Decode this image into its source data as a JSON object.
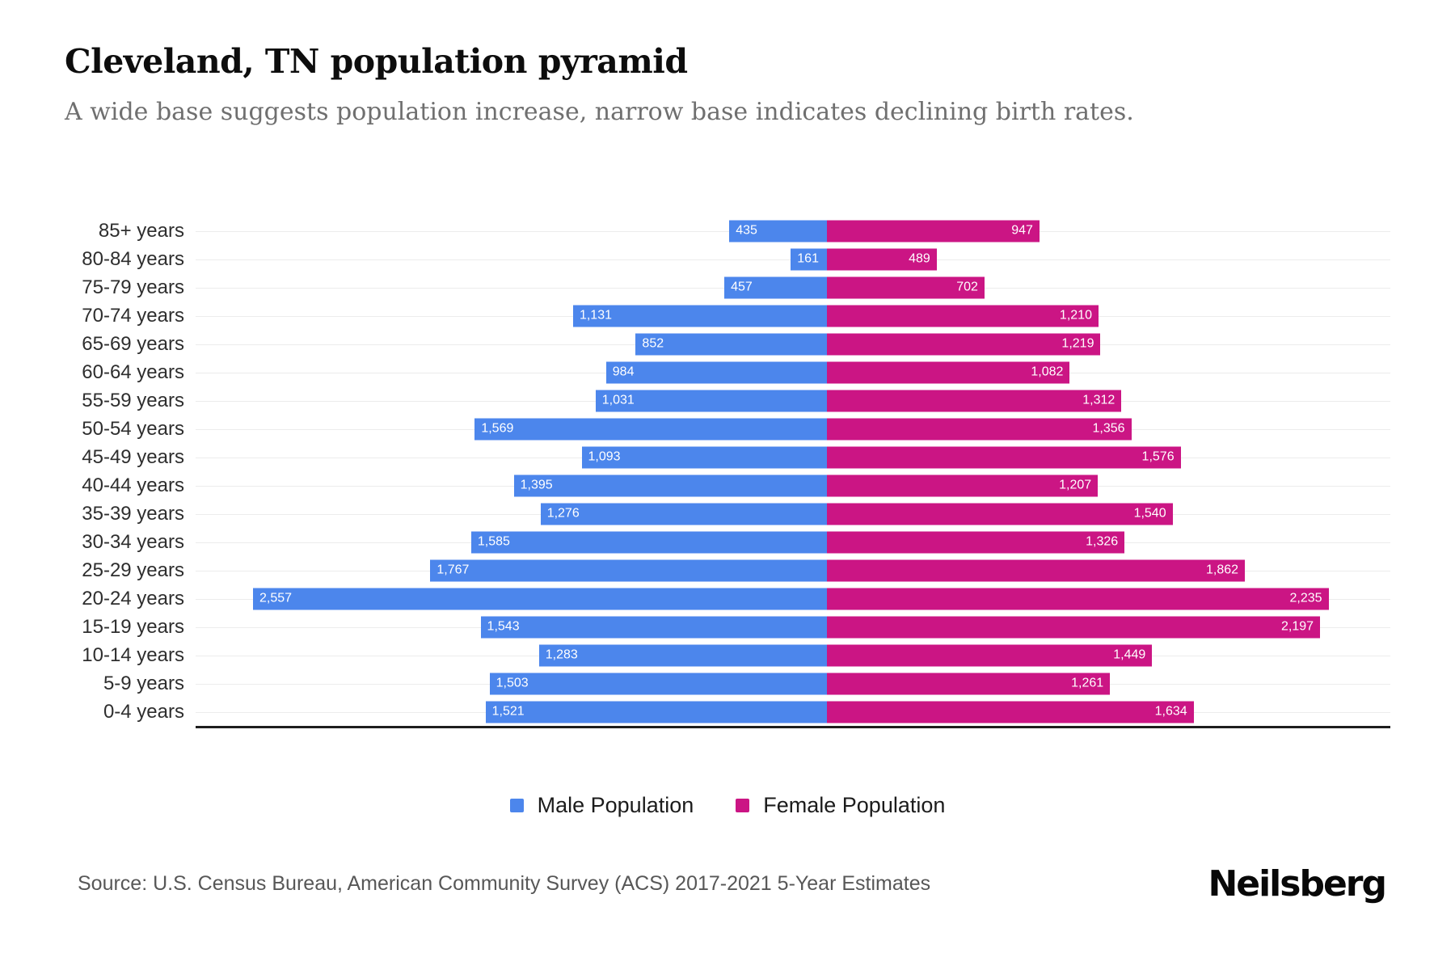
{
  "header": {
    "title": "Cleveland, TN population pyramid",
    "subtitle": "A wide base suggests population increase, narrow base indicates declining birth rates."
  },
  "chart_data": {
    "type": "bar",
    "variant": "population-pyramid-horizontal",
    "title": "Cleveland, TN population pyramid",
    "categories": [
      "85+ years",
      "80-84 years",
      "75-79 years",
      "70-74 years",
      "65-69 years",
      "60-64 years",
      "55-59 years",
      "50-54 years",
      "45-49 years",
      "40-44 years",
      "35-39 years",
      "30-34 years",
      "25-29 years",
      "20-24 years",
      "15-19 years",
      "10-14 years",
      "5-9 years",
      "0-4 years"
    ],
    "series": [
      {
        "name": "Male Population",
        "side": "left",
        "color": "#4C86EC",
        "values": [
          435,
          161,
          457,
          1131,
          852,
          984,
          1031,
          1569,
          1093,
          1395,
          1276,
          1585,
          1767,
          2557,
          1543,
          1283,
          1503,
          1521
        ]
      },
      {
        "name": "Female Population",
        "side": "right",
        "color": "#CB1584",
        "values": [
          947,
          489,
          702,
          1210,
          1219,
          1082,
          1312,
          1356,
          1576,
          1207,
          1540,
          1326,
          1862,
          2235,
          2197,
          1449,
          1261,
          1634
        ]
      }
    ],
    "value_labels": "inside-bar-ends, thousands comma format",
    "xlim_each_side": [
      0,
      2600
    ],
    "grid": "faint horizontal line per row",
    "legend_position": "bottom-center"
  },
  "footer": {
    "source": "Source: U.S. Census Bureau, American Community Survey (ACS) 2017-2021 5-Year Estimates",
    "brand": "Neilsberg"
  }
}
